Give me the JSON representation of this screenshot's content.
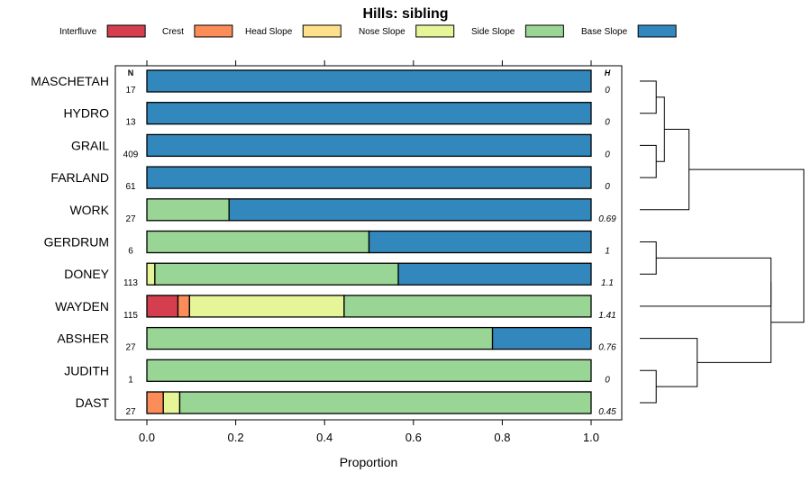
{
  "chart_data": {
    "type": "bar",
    "subtype": "stacked-horizontal-proportion",
    "title": "Hills: sibling",
    "xlabel": "Proportion",
    "ylabel": "",
    "xlim": [
      0,
      1
    ],
    "xticks": [
      "0.0",
      "0.2",
      "0.4",
      "0.6",
      "0.8",
      "1.0"
    ],
    "n_header": "N",
    "h_header": "H",
    "legend": [
      {
        "name": "Interfluve",
        "color": "#d53e4f"
      },
      {
        "name": "Crest",
        "color": "#fc8d59"
      },
      {
        "name": "Head Slope",
        "color": "#fee08b"
      },
      {
        "name": "Nose Slope",
        "color": "#e6f598"
      },
      {
        "name": "Side Slope",
        "color": "#99d594"
      },
      {
        "name": "Base Slope",
        "color": "#3288bd"
      }
    ],
    "rows": [
      {
        "name": "MASCHETAH",
        "n": "17",
        "h": "0",
        "values": [
          0,
          0,
          0,
          0,
          0,
          1
        ]
      },
      {
        "name": "HYDRO",
        "n": "13",
        "h": "0",
        "values": [
          0,
          0,
          0,
          0,
          0,
          1
        ]
      },
      {
        "name": "GRAIL",
        "n": "409",
        "h": "0",
        "values": [
          0,
          0,
          0,
          0,
          0,
          1
        ]
      },
      {
        "name": "FARLAND",
        "n": "61",
        "h": "0",
        "values": [
          0,
          0,
          0,
          0,
          0,
          1
        ]
      },
      {
        "name": "WORK",
        "n": "27",
        "h": "0.69",
        "values": [
          0,
          0,
          0,
          0,
          0.185,
          0.815
        ]
      },
      {
        "name": "GERDRUM",
        "n": "6",
        "h": "1",
        "values": [
          0,
          0,
          0,
          0,
          0.5,
          0.5
        ]
      },
      {
        "name": "DONEY",
        "n": "113",
        "h": "1.1",
        "values": [
          0,
          0,
          0,
          0.018,
          0.548,
          0.434
        ]
      },
      {
        "name": "WAYDEN",
        "n": "115",
        "h": "1.41",
        "values": [
          0.07,
          0.026,
          0,
          0.348,
          0.556,
          0
        ]
      },
      {
        "name": "ABSHER",
        "n": "27",
        "h": "0.76",
        "values": [
          0,
          0,
          0,
          0,
          0.778,
          0.222
        ]
      },
      {
        "name": "JUDITH",
        "n": "1",
        "h": "0",
        "values": [
          0,
          0,
          0,
          0,
          1,
          0
        ]
      },
      {
        "name": "DAST",
        "n": "27",
        "h": "0.45",
        "values": [
          0,
          0.037,
          0,
          0.037,
          0.926,
          0
        ]
      }
    ],
    "dendrogram": {
      "description": "hierarchical clustering of rows",
      "merges": [
        {
          "left": "MASCHETAH",
          "right": "HYDRO",
          "height": 0.1
        },
        {
          "left": "GRAIL",
          "right": "FARLAND",
          "height": 0.1
        },
        {
          "left": "c0",
          "right": "c1",
          "height": 0.15
        },
        {
          "left": "c2",
          "right": "WORK",
          "height": 0.3
        },
        {
          "left": "GERDRUM",
          "right": "DONEY",
          "height": 0.1
        },
        {
          "left": "JUDITH",
          "right": "DAST",
          "height": 0.1
        },
        {
          "left": "ABSHER",
          "right": "c5",
          "height": 0.35
        },
        {
          "left": "c4",
          "right": "WAYDEN",
          "height": 0.8
        },
        {
          "left": "c7",
          "right": "c6",
          "height": 0.8
        },
        {
          "left": "c3",
          "right": "c8",
          "height": 1.0
        }
      ]
    }
  }
}
